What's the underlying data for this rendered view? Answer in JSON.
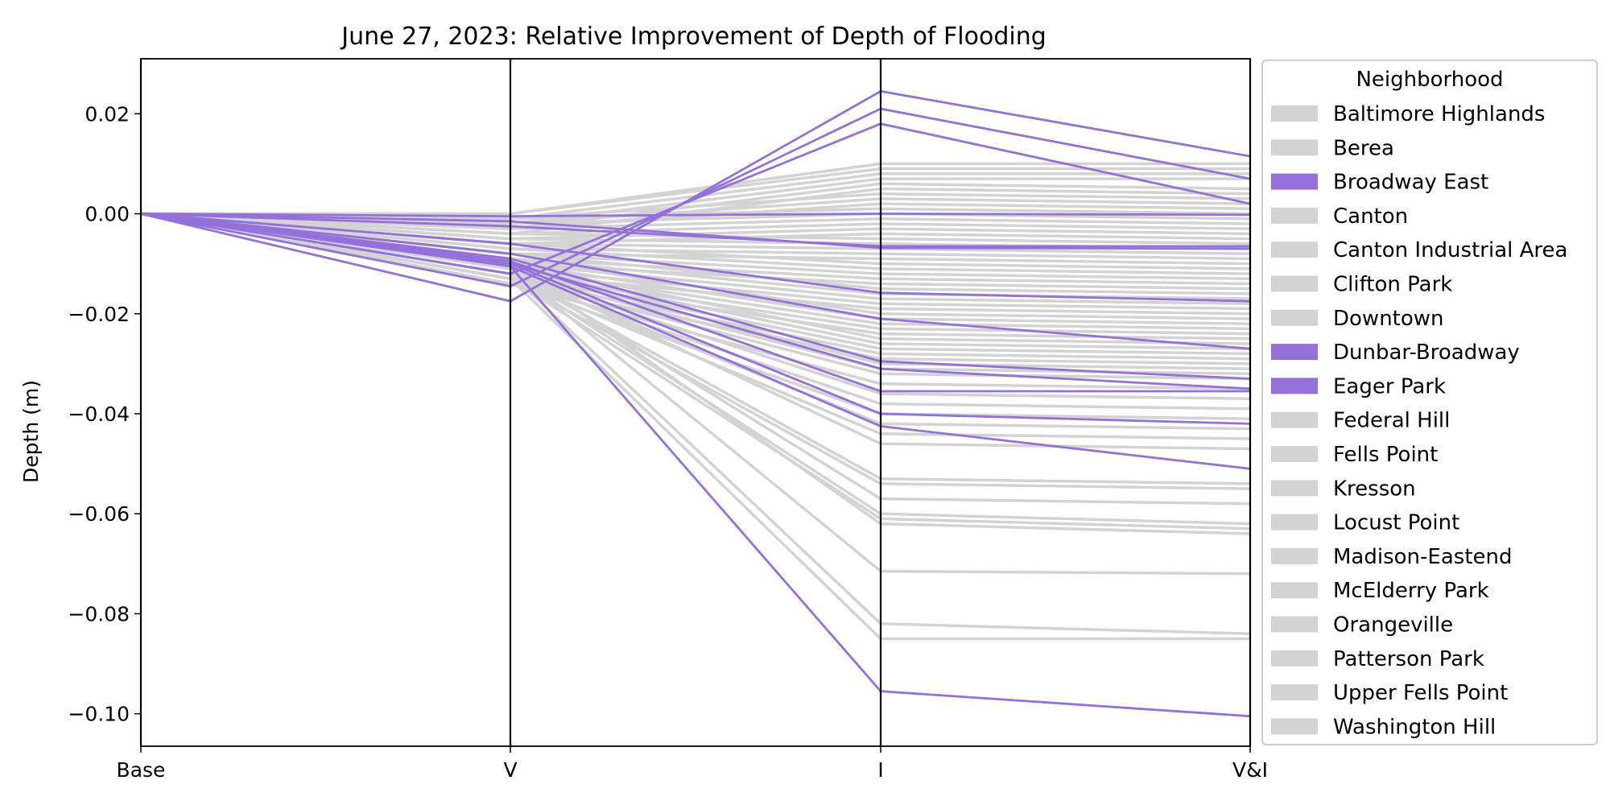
{
  "chart_data": {
    "type": "line",
    "subtype": "parallel-coordinates",
    "title": "June 27, 2023: Relative Improvement of Depth of Flooding",
    "ylabel": "Depth (m)",
    "xlabel": "",
    "categories": [
      "Base",
      "V",
      "I",
      "V&I"
    ],
    "ylim": [
      -0.1065,
      0.031
    ],
    "yticks": [
      0.02,
      0.0,
      -0.02,
      -0.04,
      -0.06,
      -0.08,
      -0.1
    ],
    "ytick_labels": [
      "0.02",
      "0.00",
      "−0.02",
      "−0.04",
      "−0.06",
      "−0.08",
      "−0.10"
    ],
    "grid": false,
    "legend": {
      "title": "Neighborhood",
      "placement": "right-outside",
      "entries": [
        {
          "label": "Baltimore Highlands",
          "color": "#d3d3d3"
        },
        {
          "label": "Berea",
          "color": "#d3d3d3"
        },
        {
          "label": "Broadway East",
          "color": "#9370db"
        },
        {
          "label": "Canton",
          "color": "#d3d3d3"
        },
        {
          "label": "Canton Industrial Area",
          "color": "#d3d3d3"
        },
        {
          "label": "Clifton Park",
          "color": "#d3d3d3"
        },
        {
          "label": "Downtown",
          "color": "#d3d3d3"
        },
        {
          "label": "Dunbar-Broadway",
          "color": "#9370db"
        },
        {
          "label": "Eager Park",
          "color": "#9370db"
        },
        {
          "label": "Federal Hill",
          "color": "#d3d3d3"
        },
        {
          "label": "Fells Point",
          "color": "#d3d3d3"
        },
        {
          "label": "Kresson",
          "color": "#d3d3d3"
        },
        {
          "label": "Locust Point",
          "color": "#d3d3d3"
        },
        {
          "label": "Madison-Eastend",
          "color": "#d3d3d3"
        },
        {
          "label": "McElderry Park",
          "color": "#d3d3d3"
        },
        {
          "label": "Orangeville",
          "color": "#d3d3d3"
        },
        {
          "label": "Patterson Park",
          "color": "#d3d3d3"
        },
        {
          "label": "Upper Fells Point",
          "color": "#d3d3d3"
        },
        {
          "label": "Washington Hill",
          "color": "#d3d3d3"
        }
      ]
    },
    "colors": {
      "highlight": "#9370db",
      "other": "#d3d3d3"
    },
    "series_gray": [
      [
        0,
        0,
        0.01,
        0.01
      ],
      [
        0,
        0,
        0.009,
        0.009
      ],
      [
        0,
        -0.001,
        0.008,
        0.008
      ],
      [
        0,
        -0.002,
        0.007,
        0.007
      ],
      [
        0,
        -0.003,
        0.006,
        0.005
      ],
      [
        0,
        -0.004,
        0.005,
        0.004
      ],
      [
        0,
        -0.001,
        0.004,
        0.003
      ],
      [
        0,
        -0.002,
        0.003,
        0.002
      ],
      [
        0,
        -0.003,
        0.002,
        0.001
      ],
      [
        0,
        -0.001,
        0.001,
        0.0
      ],
      [
        0,
        -0.002,
        0.0,
        -0.001
      ],
      [
        0,
        -0.003,
        -0.001,
        -0.002
      ],
      [
        0,
        -0.004,
        -0.002,
        -0.003
      ],
      [
        0,
        -0.005,
        -0.003,
        -0.004
      ],
      [
        0,
        -0.006,
        -0.004,
        -0.005
      ],
      [
        0,
        -0.004,
        -0.005,
        -0.006
      ],
      [
        0,
        -0.005,
        -0.006,
        -0.007
      ],
      [
        0,
        -0.006,
        -0.007,
        -0.008
      ],
      [
        0,
        -0.007,
        -0.008,
        -0.009
      ],
      [
        0,
        -0.008,
        -0.009,
        -0.01
      ],
      [
        0,
        -0.006,
        -0.01,
        -0.011
      ],
      [
        0,
        -0.007,
        -0.011,
        -0.012
      ],
      [
        0,
        -0.008,
        -0.012,
        -0.013
      ],
      [
        0,
        -0.009,
        -0.013,
        -0.014
      ],
      [
        0,
        -0.01,
        -0.014,
        -0.015
      ],
      [
        0,
        -0.008,
        -0.015,
        -0.016
      ],
      [
        0,
        -0.009,
        -0.016,
        -0.017
      ],
      [
        0,
        -0.01,
        -0.017,
        -0.018
      ],
      [
        0,
        -0.011,
        -0.018,
        -0.019
      ],
      [
        0,
        -0.012,
        -0.019,
        -0.02
      ],
      [
        0,
        -0.009,
        -0.02,
        -0.021
      ],
      [
        0,
        -0.01,
        -0.021,
        -0.022
      ],
      [
        0,
        -0.011,
        -0.022,
        -0.023
      ],
      [
        0,
        -0.012,
        -0.023,
        -0.024
      ],
      [
        0,
        -0.013,
        -0.024,
        -0.025
      ],
      [
        0,
        -0.01,
        -0.025,
        -0.026
      ],
      [
        0,
        -0.011,
        -0.026,
        -0.027
      ],
      [
        0,
        -0.012,
        -0.027,
        -0.028
      ],
      [
        0,
        -0.013,
        -0.028,
        -0.029
      ],
      [
        0,
        -0.014,
        -0.029,
        -0.03
      ],
      [
        0,
        -0.011,
        -0.03,
        -0.031
      ],
      [
        0,
        -0.012,
        -0.031,
        -0.032
      ],
      [
        0,
        -0.013,
        -0.032,
        -0.033
      ],
      [
        0,
        -0.014,
        -0.034,
        -0.035
      ],
      [
        0,
        -0.012,
        -0.036,
        -0.037
      ],
      [
        0,
        -0.013,
        -0.038,
        -0.039
      ],
      [
        0,
        -0.014,
        -0.04,
        -0.041
      ],
      [
        0,
        -0.012,
        -0.042,
        -0.043
      ],
      [
        0,
        -0.013,
        -0.044,
        -0.045
      ],
      [
        0,
        -0.011,
        -0.046,
        -0.047
      ],
      [
        0,
        -0.012,
        -0.053,
        -0.054
      ],
      [
        0,
        -0.013,
        -0.054,
        -0.055
      ],
      [
        0,
        -0.011,
        -0.057,
        -0.058
      ],
      [
        0,
        -0.012,
        -0.06,
        -0.062
      ],
      [
        0,
        -0.013,
        -0.061,
        -0.063
      ],
      [
        0,
        -0.01,
        -0.062,
        -0.064
      ],
      [
        0,
        -0.011,
        -0.0715,
        -0.072
      ],
      [
        0,
        -0.012,
        -0.082,
        -0.084
      ],
      [
        0,
        -0.013,
        -0.085,
        -0.085
      ]
    ],
    "series_highlight": [
      [
        0,
        -0.0175,
        0.0245,
        0.0115
      ],
      [
        0,
        -0.0145,
        0.021,
        0.007
      ],
      [
        0,
        -0.012,
        0.018,
        0.002
      ],
      [
        0,
        -0.0005,
        0.0,
        -0.0002
      ],
      [
        0,
        -0.0025,
        -0.0065,
        -0.0065
      ],
      [
        0,
        -0.0015,
        -0.0068,
        -0.007
      ],
      [
        0,
        -0.006,
        -0.0158,
        -0.0175
      ],
      [
        0,
        -0.008,
        -0.021,
        -0.027
      ],
      [
        0,
        -0.009,
        -0.0295,
        -0.033
      ],
      [
        0,
        -0.01,
        -0.031,
        -0.035
      ],
      [
        0,
        -0.0095,
        -0.0355,
        -0.0355
      ],
      [
        0,
        -0.01,
        -0.04,
        -0.042
      ],
      [
        0,
        -0.0105,
        -0.0425,
        -0.051
      ],
      [
        0,
        -0.0105,
        -0.0955,
        -0.1005
      ]
    ]
  }
}
